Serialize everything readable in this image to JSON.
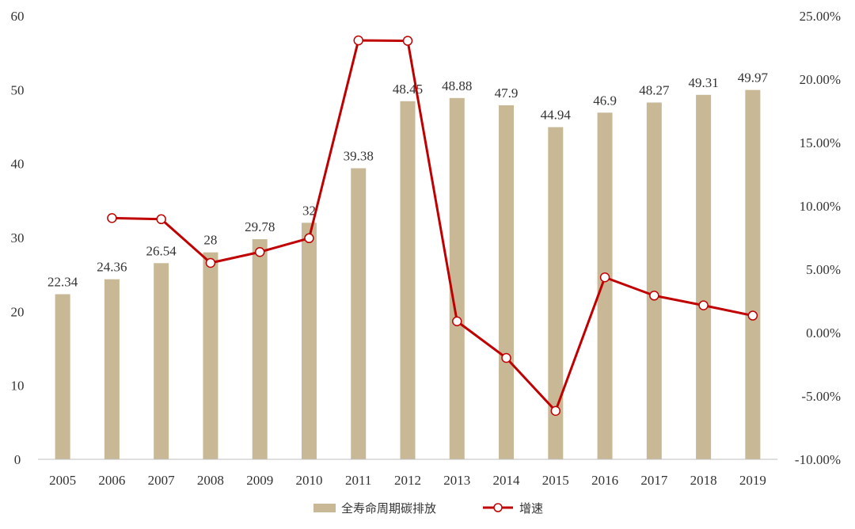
{
  "chart_data": {
    "type": "bar",
    "categories": [
      "2005",
      "2006",
      "2007",
      "2008",
      "2009",
      "2010",
      "2011",
      "2012",
      "2013",
      "2014",
      "2015",
      "2016",
      "2017",
      "2018",
      "2019"
    ],
    "series": [
      {
        "name": "全寿命周期碳排放",
        "type": "bar",
        "axis": "left",
        "values": [
          22.34,
          24.36,
          26.54,
          28,
          29.78,
          32,
          39.38,
          48.45,
          48.88,
          47.9,
          44.94,
          46.9,
          48.27,
          49.31,
          49.97
        ],
        "labels": [
          "22.34",
          "24.36",
          "26.54",
          "28",
          "29.78",
          "32",
          "39.38",
          "48.45",
          "48.88",
          "47.9",
          "44.94",
          "46.9",
          "48.27",
          "49.31",
          "49.97"
        ]
      },
      {
        "name": "增速",
        "type": "line",
        "axis": "right",
        "values": [
          null,
          9.04,
          8.95,
          5.5,
          6.36,
          7.45,
          23.06,
          23.03,
          0.89,
          -2.0,
          -6.18,
          4.36,
          2.92,
          2.15,
          1.34
        ]
      }
    ],
    "ylim_left": [
      0,
      60
    ],
    "yticks_left": [
      "0",
      "10",
      "20",
      "30",
      "40",
      "50",
      "60"
    ],
    "ylim_right": [
      -10,
      25
    ],
    "yticks_right": [
      "-10.00%",
      "-5.00%",
      "0.00%",
      "5.00%",
      "10.00%",
      "15.00%",
      "20.00%",
      "25.00%"
    ],
    "legend_position": "bottom-center",
    "grid": false
  },
  "colors": {
    "bar": "#c8b896",
    "line": "#c00000",
    "marker_fill": "#ffffff",
    "axis": "#bfbfbf",
    "text": "#333333"
  }
}
